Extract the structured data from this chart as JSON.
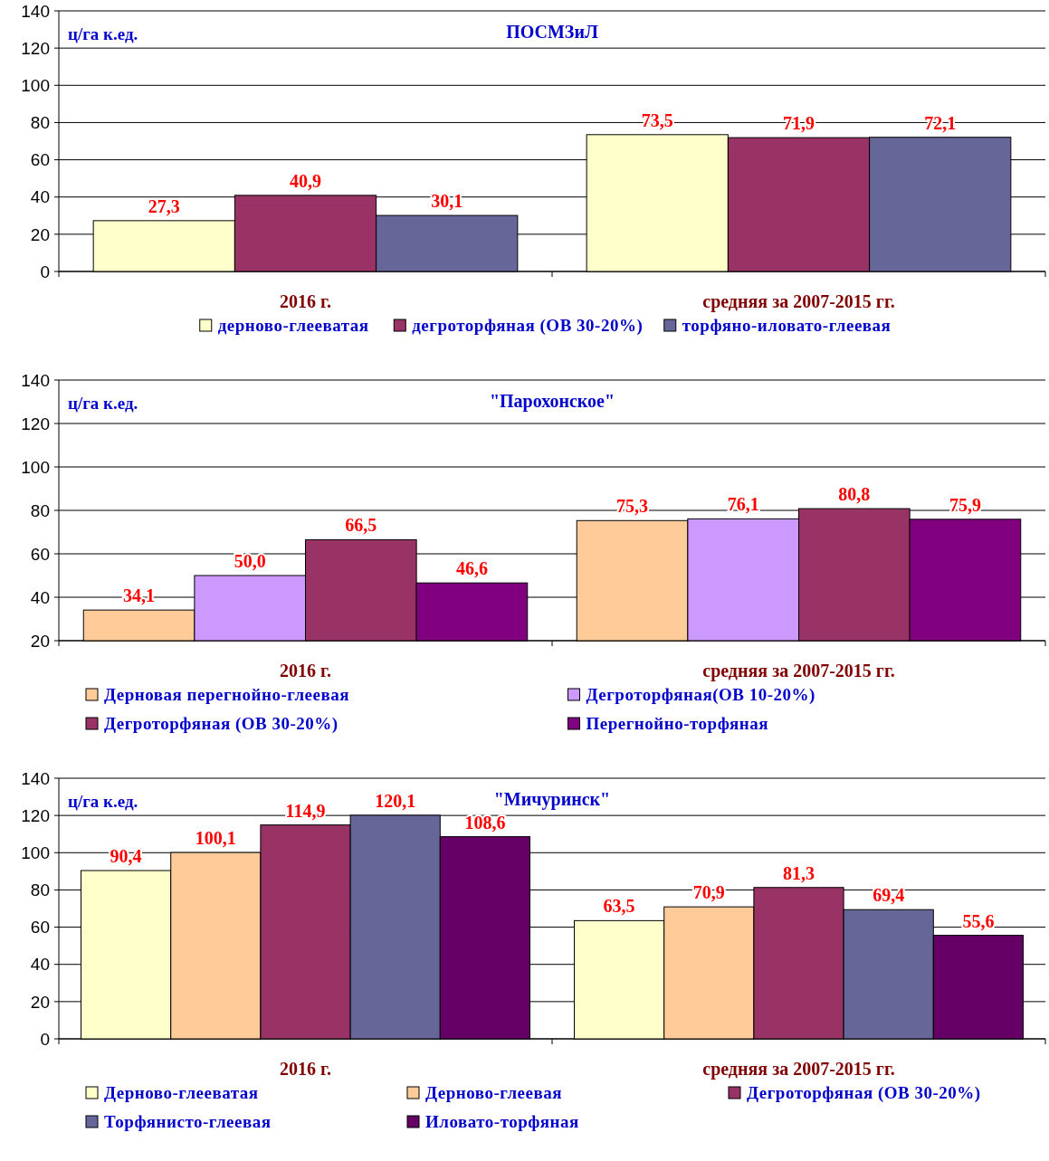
{
  "chart_data": [
    {
      "type": "bar",
      "title": "ПОСМЗиЛ",
      "ylabel": "ц/га к.ед.",
      "categories": [
        "2016 г.",
        "средняя за 2007-2015 гг."
      ],
      "series": [
        {
          "name": "дерново-глееватая",
          "color": "#ffffcc",
          "values": [
            27.3,
            73.5
          ]
        },
        {
          "name": "дегроторфяная (ОВ 30-20%)",
          "color": "#993366",
          "values": [
            40.9,
            71.9
          ]
        },
        {
          "name": "торфяно-иловато-глеевая",
          "color": "#666699",
          "values": [
            30.1,
            72.1
          ]
        }
      ],
      "ylim": [
        0,
        140
      ],
      "yticks": [
        0,
        20,
        40,
        60,
        80,
        100,
        120,
        140
      ],
      "grid": "y",
      "legend": "bottom",
      "value_labels": [
        [
          "27,3",
          "73,5"
        ],
        [
          "40,9",
          "71,9"
        ],
        [
          "30,1",
          "72,1"
        ]
      ]
    },
    {
      "type": "bar",
      "title": "\"Парохонское\"",
      "ylabel": "ц/га к.ед.",
      "categories": [
        "2016 г.",
        "средняя за 2007-2015 гг."
      ],
      "series": [
        {
          "name": "Дерновая перегнойно-глеевая",
          "color": "#ffcc99",
          "values": [
            34.1,
            75.3
          ]
        },
        {
          "name": "Дегроторфяная(ОВ 10-20%)",
          "color": "#cc99ff",
          "values": [
            50.0,
            76.1
          ]
        },
        {
          "name": "Дегроторфяная (ОВ 30-20%)",
          "color": "#993366",
          "values": [
            66.5,
            80.8
          ]
        },
        {
          "name": "Перегнойно-торфяная",
          "color": "#800080",
          "values": [
            46.6,
            75.9
          ]
        }
      ],
      "ylim": [
        20,
        140
      ],
      "yticks": [
        20,
        40,
        60,
        80,
        100,
        120,
        140
      ],
      "grid": "y",
      "legend": "bottom",
      "value_labels": [
        [
          "34,1",
          "75,3"
        ],
        [
          "50,0",
          "76,1"
        ],
        [
          "66,5",
          "80,8"
        ],
        [
          "46,6",
          "75,9"
        ]
      ]
    },
    {
      "type": "bar",
      "title": "\"Мичуринск\"",
      "ylabel": "ц/га к.ед.",
      "categories": [
        "2016 г.",
        "средняя за 2007-2015 гг."
      ],
      "series": [
        {
          "name": "Дерново-глееватая",
          "color": "#ffffcc",
          "values": [
            90.4,
            63.5
          ]
        },
        {
          "name": "Дерново-глеевая",
          "color": "#ffcc99",
          "values": [
            100.1,
            70.9
          ]
        },
        {
          "name": "Дегроторфяная  (ОВ 30-20%)",
          "color": "#993366",
          "values": [
            114.9,
            81.3
          ]
        },
        {
          "name": "Торфянисто-глеевая",
          "color": "#666699",
          "values": [
            120.1,
            69.4
          ]
        },
        {
          "name": "Иловато-торфяная",
          "color": "#660066",
          "values": [
            108.6,
            55.6
          ]
        }
      ],
      "ylim": [
        0,
        140
      ],
      "yticks": [
        0,
        20,
        40,
        60,
        80,
        100,
        120,
        140
      ],
      "grid": "y",
      "legend": "bottom",
      "value_labels": [
        [
          "90,4",
          "63,5"
        ],
        [
          "100,1",
          "70,9"
        ],
        [
          "114,9",
          "81,3"
        ],
        [
          "120,1",
          "69,4"
        ],
        [
          "108,6",
          "55,6"
        ]
      ]
    }
  ]
}
